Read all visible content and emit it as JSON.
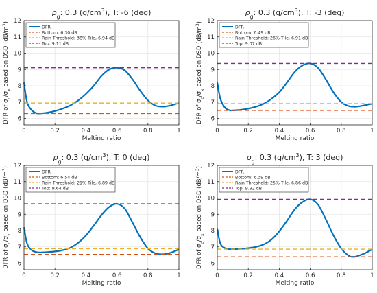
{
  "colors": {
    "dfr": "#0072BD",
    "bottom": "#D95319",
    "threshold": "#EDB120",
    "top": "#7E2F8E",
    "axis": "#262626",
    "grid": "#e6e6e6"
  },
  "chart_data": [
    {
      "type": "line",
      "title": {
        "rho": "ρ",
        "sub": "g",
        "rest": ": 0.3 (g/cm",
        "sup": "3",
        "tail": "), T: -6 (deg)"
      },
      "xlabel": "Melting ratio",
      "ylabel": {
        "pre": "DFR of σ",
        "s1": "c",
        "mid": "/σ",
        "s2": "x",
        "post": " based on DSD (dB/m",
        "sup": "3",
        "end": ")"
      },
      "xlim": [
        0,
        1
      ],
      "ylim": [
        5.6,
        12
      ],
      "xticks": [
        "0",
        "0.2",
        "0.4",
        "0.6",
        "0.8",
        "1"
      ],
      "yticks": [
        "6",
        "7",
        "8",
        "9",
        "10",
        "11",
        "12"
      ],
      "grid": true,
      "legend_position": "top-left",
      "series": [
        {
          "name": "DFR",
          "kind": "curve",
          "x": [
            0,
            0.02,
            0.05,
            0.08,
            0.1,
            0.15,
            0.2,
            0.25,
            0.3,
            0.35,
            0.4,
            0.45,
            0.5,
            0.55,
            0.6,
            0.65,
            0.7,
            0.75,
            0.8,
            0.85,
            0.9,
            0.95,
            1.0
          ],
          "y": [
            8.2,
            7.0,
            6.5,
            6.32,
            6.3,
            6.35,
            6.45,
            6.6,
            6.8,
            7.1,
            7.5,
            8.0,
            8.6,
            9.0,
            9.11,
            8.95,
            8.4,
            7.7,
            7.1,
            6.78,
            6.72,
            6.8,
            6.95
          ]
        },
        {
          "name": "Bottom: 6.30 dB",
          "kind": "hline",
          "value": 6.3
        },
        {
          "name": "Rain Threshold: 38% Tile, 6.94 dB",
          "kind": "hline",
          "value": 6.94
        },
        {
          "name": "Top: 9.11 dB",
          "kind": "hline",
          "value": 9.11
        }
      ]
    },
    {
      "type": "line",
      "title": {
        "rho": "ρ",
        "sub": "g",
        "rest": ": 0.3 (g/cm",
        "sup": "3",
        "tail": "), T: -3 (deg)"
      },
      "xlabel": "Melting ratio",
      "ylabel": {
        "pre": "DFR of σ",
        "s1": "c",
        "mid": "/σ",
        "s2": "x",
        "post": " based on DSD (dB/m",
        "sup": "3",
        "end": ")"
      },
      "xlim": [
        0,
        1
      ],
      "ylim": [
        5.6,
        12
      ],
      "xticks": [
        "0",
        "0.2",
        "0.4",
        "0.6",
        "0.8",
        "1"
      ],
      "yticks": [
        "6",
        "7",
        "8",
        "9",
        "10",
        "11",
        "12"
      ],
      "grid": true,
      "legend_position": "top-left",
      "series": [
        {
          "name": "DFR",
          "kind": "curve",
          "x": [
            0,
            0.02,
            0.05,
            0.08,
            0.1,
            0.15,
            0.2,
            0.25,
            0.3,
            0.35,
            0.4,
            0.45,
            0.5,
            0.55,
            0.6,
            0.65,
            0.7,
            0.75,
            0.8,
            0.85,
            0.9,
            0.95,
            1.0
          ],
          "y": [
            8.2,
            7.2,
            6.65,
            6.5,
            6.49,
            6.52,
            6.6,
            6.72,
            6.9,
            7.2,
            7.6,
            8.2,
            8.85,
            9.25,
            9.37,
            9.1,
            8.4,
            7.6,
            7.0,
            6.75,
            6.72,
            6.8,
            6.9
          ]
        },
        {
          "name": "Bottom: 6.49 dB",
          "kind": "hline",
          "value": 6.49
        },
        {
          "name": "Rain Threshold: 26% Tile, 6.91 dB",
          "kind": "hline",
          "value": 6.91
        },
        {
          "name": "Top: 9.37 dB",
          "kind": "hline",
          "value": 9.37
        }
      ]
    },
    {
      "type": "line",
      "title": {
        "rho": "ρ",
        "sub": "g",
        "rest": ": 0.3 (g/cm",
        "sup": "3",
        "tail": "), T: 0 (deg)"
      },
      "xlabel": "Melting ratio",
      "ylabel": {
        "pre": "DFR of σ",
        "s1": "c",
        "mid": "/σ",
        "s2": "x",
        "post": " based on DSD (dB/m",
        "sup": "3",
        "end": ")"
      },
      "xlim": [
        0,
        1
      ],
      "ylim": [
        5.6,
        12
      ],
      "xticks": [
        "0",
        "0.2",
        "0.4",
        "0.6",
        "0.8",
        "1"
      ],
      "yticks": [
        "6",
        "7",
        "8",
        "9",
        "10",
        "11",
        "12"
      ],
      "grid": true,
      "legend_position": "top-left",
      "series": [
        {
          "name": "DFR",
          "kind": "curve",
          "x": [
            0,
            0.02,
            0.05,
            0.08,
            0.1,
            0.15,
            0.2,
            0.25,
            0.3,
            0.35,
            0.4,
            0.45,
            0.5,
            0.55,
            0.6,
            0.65,
            0.7,
            0.75,
            0.8,
            0.85,
            0.9,
            0.95,
            1.0
          ],
          "y": [
            8.2,
            7.2,
            6.8,
            6.68,
            6.66,
            6.68,
            6.72,
            6.8,
            6.95,
            7.25,
            7.7,
            8.3,
            8.95,
            9.45,
            9.64,
            9.35,
            8.5,
            7.6,
            6.9,
            6.6,
            6.55,
            6.65,
            6.85
          ]
        },
        {
          "name": "Bottom: 6.54 dB",
          "kind": "hline",
          "value": 6.54
        },
        {
          "name": "Rain Threshold: 21% Tile, 6.89 dB",
          "kind": "hline",
          "value": 6.89
        },
        {
          "name": "Top: 9.64 dB",
          "kind": "hline",
          "value": 9.64
        }
      ]
    },
    {
      "type": "line",
      "title": {
        "rho": "ρ",
        "sub": "g",
        "rest": ": 0.3 (g/cm",
        "sup": "3",
        "tail": "), T: 3 (deg)"
      },
      "xlabel": "Melting ratio",
      "ylabel": {
        "pre": "DFR of σ",
        "s1": "c",
        "mid": "/σ",
        "s2": "x",
        "post": " based on DSD (dB/m",
        "sup": "3",
        "end": ")"
      },
      "xlim": [
        0,
        1
      ],
      "ylim": [
        5.6,
        12
      ],
      "xticks": [
        "0",
        "0.2",
        "0.4",
        "0.6",
        "0.8",
        "1"
      ],
      "yticks": [
        "6",
        "7",
        "8",
        "9",
        "10",
        "11",
        "12"
      ],
      "grid": true,
      "legend_position": "top-left",
      "series": [
        {
          "name": "DFR",
          "kind": "curve",
          "x": [
            0,
            0.02,
            0.05,
            0.08,
            0.1,
            0.15,
            0.2,
            0.25,
            0.3,
            0.35,
            0.4,
            0.45,
            0.5,
            0.55,
            0.6,
            0.65,
            0.7,
            0.75,
            0.8,
            0.85,
            0.88,
            0.9,
            0.95,
            1.0
          ],
          "y": [
            8.1,
            7.2,
            6.92,
            6.86,
            6.86,
            6.88,
            6.92,
            7.0,
            7.15,
            7.45,
            7.95,
            8.6,
            9.3,
            9.75,
            9.92,
            9.6,
            8.7,
            7.7,
            6.9,
            6.45,
            6.39,
            6.42,
            6.6,
            6.85
          ]
        },
        {
          "name": "Bottom: 6.39 dB",
          "kind": "hline",
          "value": 6.39
        },
        {
          "name": "Rain Threshold: 25% Tile, 6.86 dB",
          "kind": "hline",
          "value": 6.86
        },
        {
          "name": "Top: 9.92 dB",
          "kind": "hline",
          "value": 9.92
        }
      ]
    }
  ]
}
